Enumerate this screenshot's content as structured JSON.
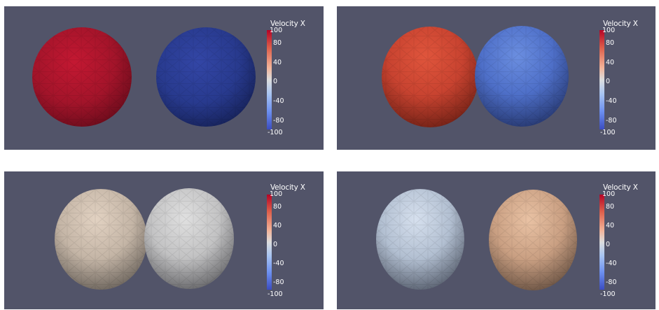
{
  "colorbar": {
    "title": "Velocity X",
    "ticks": [
      "100",
      "80",
      "40",
      "0",
      "-40",
      "-80",
      "-100"
    ],
    "range": [
      -100,
      100
    ]
  },
  "colors": {
    "background": "#525469",
    "colormap": [
      "#3b4cc0",
      "#dcdddd",
      "#b40426"
    ]
  },
  "panels": [
    {
      "left_sphere": {
        "velocity_x": 100
      },
      "right_sphere": {
        "velocity_x": -100
      }
    },
    {
      "left_sphere": {
        "velocity_x": 70
      },
      "right_sphere": {
        "velocity_x": -70
      }
    },
    {
      "left_sphere": {
        "velocity_x": 15
      },
      "right_sphere": {
        "velocity_x": 0
      }
    },
    {
      "left_sphere": {
        "velocity_x": -20
      },
      "right_sphere": {
        "velocity_x": 25
      }
    }
  ]
}
